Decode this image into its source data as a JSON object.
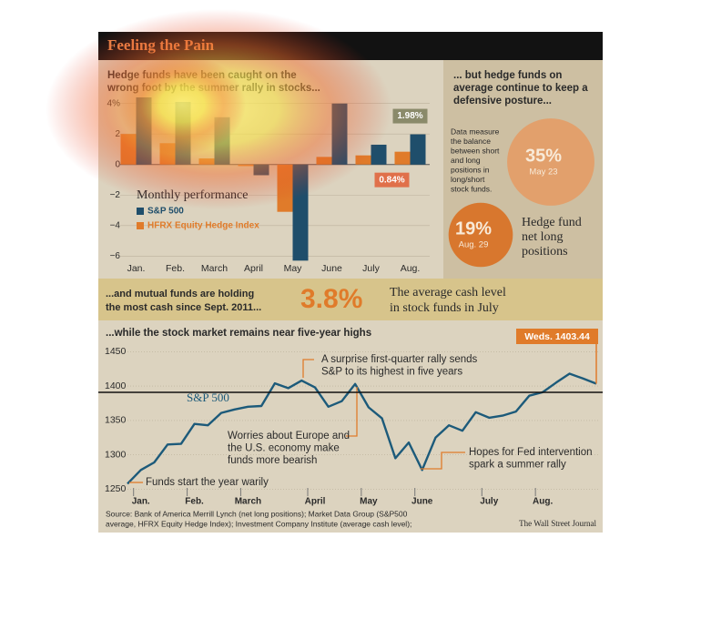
{
  "title": "Feeling the Pain",
  "cash": {
    "lead": [
      "...and mutual funds are holding",
      "the most cash since Sept. 2011..."
    ],
    "value": "3.8%",
    "text": [
      "The average cash level",
      "in stock funds in July"
    ]
  },
  "source": [
    "Source: Bank of America Merrill Lynch (net long positions); Market Data Group (S&P500",
    "average, HFRX Equity Hedge Index); Investment Company Institute (average cash level);"
  ],
  "credit": "The Wall Street Journal",
  "chart_data": [
    {
      "type": "bar",
      "subtitle": [
        "Hedge funds have been caught on the",
        "wrong foot by the summer rally in stocks..."
      ],
      "legend_title": "Monthly performance",
      "categories": [
        "Jan.",
        "Feb.",
        "March",
        "April",
        "May",
        "June",
        "July",
        "Aug."
      ],
      "series": [
        {
          "name": "S&P 500",
          "color": "#1f4e6b",
          "values": [
            4.4,
            4.1,
            3.1,
            -0.7,
            -6.3,
            4.0,
            1.3,
            1.98
          ],
          "value_labels": [
            null,
            null,
            null,
            null,
            null,
            null,
            null,
            "1.98%"
          ]
        },
        {
          "name": "HFRX Equity Hedge Index",
          "color": "#e07b2a",
          "values": [
            2.0,
            1.4,
            0.4,
            -0.1,
            -3.1,
            0.5,
            0.6,
            0.84
          ],
          "value_labels": [
            null,
            null,
            null,
            null,
            null,
            null,
            null,
            "0.84%"
          ]
        }
      ],
      "ylim": [
        -6.4,
        4.4
      ],
      "yticks": [
        {
          "value": 4,
          "label": "4%"
        },
        2,
        0,
        {
          "value": -2,
          "label": "−2"
        },
        {
          "value": -4,
          "label": "−4"
        },
        {
          "value": -6,
          "label": "−6"
        }
      ],
      "grid": true
    },
    {
      "type": "bubble",
      "subtitle": [
        "... but hedge funds on",
        "average continue to keep a",
        "defensive posture..."
      ],
      "note": [
        "Data measure",
        "the balance",
        "between short",
        "and long",
        "positions in",
        "long/short",
        "stock funds."
      ],
      "label": [
        "Hedge fund",
        "net long",
        "positions"
      ],
      "categories": [
        "May 23",
        "Aug. 29"
      ],
      "values": [
        35,
        19
      ],
      "value_labels": [
        "35%",
        "19%"
      ],
      "colors": [
        "#e2a06c",
        "#d8772e"
      ]
    },
    {
      "type": "line",
      "subtitle": "...while the stock market remains near five-year highs",
      "categories": [
        null,
        "Jan.",
        null,
        null,
        null,
        "Feb.",
        null,
        null,
        null,
        "March",
        null,
        null,
        null,
        null,
        "April",
        null,
        null,
        null,
        "May",
        null,
        null,
        null,
        "June",
        null,
        null,
        null,
        null,
        "July",
        null,
        null,
        null,
        "Aug.",
        null,
        null,
        null,
        null
      ],
      "series": [
        {
          "name": "S&P 500",
          "color": "#1c5a7a",
          "values": [
            1258,
            1278,
            1289,
            1315,
            1316,
            1345,
            1343,
            1361,
            1366,
            1370,
            1371,
            1404,
            1397,
            1408,
            1398,
            1370,
            1378,
            1403,
            1369,
            1353,
            1295,
            1318,
            1278,
            1325,
            1343,
            1335,
            1362,
            1354,
            1357,
            1363,
            1386,
            1391,
            1405,
            1418,
            1411,
            1403.44
          ]
        }
      ],
      "ylim": [
        1240,
        1465
      ],
      "yticks": [
        1250,
        1300,
        1350,
        1400,
        1450
      ],
      "grid": true,
      "end_label": "Weds. 1403.44",
      "annotations": [
        {
          "text": [
            "A surprise first-quarter rally sends",
            "S&P to its highest in five years"
          ]
        },
        {
          "text": [
            "Worries about Europe and",
            "the U.S. economy make",
            "funds more bearish"
          ]
        },
        {
          "text": [
            "Hopes for Fed intervention",
            "spark a summer rally"
          ]
        },
        {
          "text": [
            "Funds start the year warily"
          ]
        }
      ]
    }
  ]
}
